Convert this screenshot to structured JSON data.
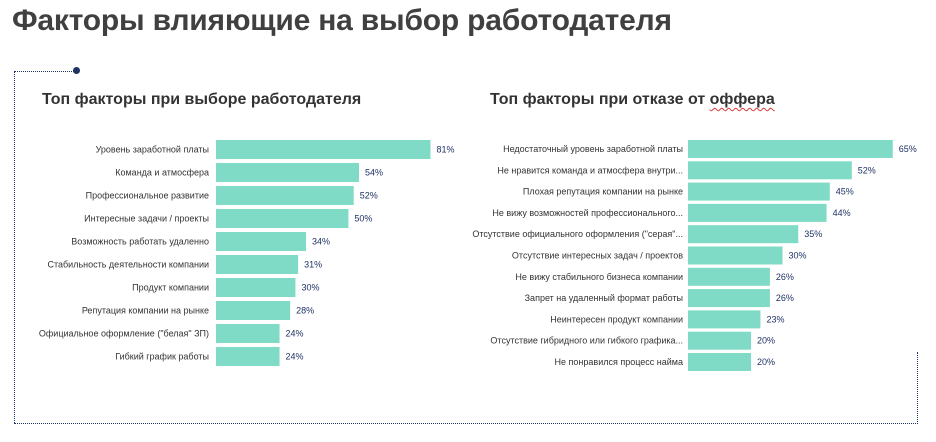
{
  "page": {
    "title": "Факторы влияющие на выбор работодателя"
  },
  "colors": {
    "bar": "#7fdbc5",
    "title": "#404040",
    "value_label": "#1f3264",
    "frame": "#22336b"
  },
  "chart_data": [
    {
      "type": "bar",
      "orientation": "horizontal",
      "title": "Топ факторы при выборе работодателя",
      "title_parts": {
        "before": "Топ факторы при выборе работодателя",
        "marked": ""
      },
      "categories": [
        "Уровень заработной платы",
        "Команда и атмосфера",
        "Профессиональное развитие",
        "Интересные задачи / проекты",
        "Возможность работать удаленно",
        "Стабильность деятельности компании",
        "Продукт компании",
        "Репутация компании на рынке",
        "Официальное оформление (\"белая\" ЗП)",
        "Гибкий график работы"
      ],
      "values": [
        81,
        54,
        52,
        50,
        34,
        31,
        30,
        28,
        24,
        24
      ],
      "value_labels": [
        "81%",
        "54%",
        "52%",
        "50%",
        "34%",
        "31%",
        "30%",
        "28%",
        "24%",
        "24%"
      ],
      "xlim": [
        0,
        100
      ],
      "grid": false
    },
    {
      "type": "bar",
      "orientation": "horizontal",
      "title": "Топ факторы при отказе от оффера",
      "title_parts": {
        "before": "Топ факторы при отказе от ",
        "marked": "оффера"
      },
      "categories": [
        "Недостаточный уровень заработной платы",
        "Не нравится команда и атмосфера внутри...",
        "Плохая репутация компании на рынке",
        "Не вижу возможностей профессионального...",
        "Отсутствие официального оформления (\"серая\"...",
        "Отсутствие интересных задач / проектов",
        "Не вижу стабильного бизнеса компании",
        "Запрет на удаленный формат работы",
        "Неинтересен продукт компании",
        "Отсутствие гибридного или гибкого графика...",
        "Не понравился процесс найма"
      ],
      "values": [
        65,
        52,
        45,
        44,
        35,
        30,
        26,
        26,
        23,
        20,
        20
      ],
      "value_labels": [
        "65%",
        "52%",
        "45%",
        "44%",
        "35%",
        "30%",
        "26%",
        "26%",
        "23%",
        "20%",
        "20%"
      ],
      "xlim": [
        0,
        100
      ],
      "grid": false
    }
  ]
}
